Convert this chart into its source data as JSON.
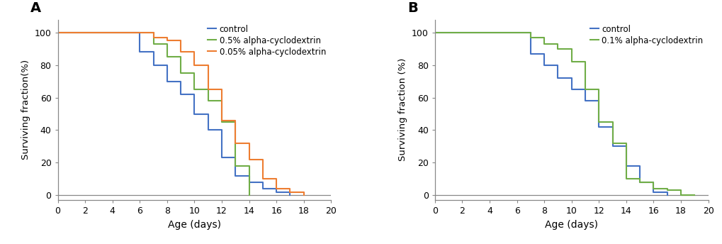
{
  "panel_A": {
    "title_label": "A",
    "xlabel": "Age (days)",
    "ylabel": "Surviving fraction(%)",
    "xlim": [
      0,
      20
    ],
    "ylim": [
      -3,
      108
    ],
    "xticks": [
      0,
      2,
      4,
      6,
      8,
      10,
      12,
      14,
      16,
      18,
      20
    ],
    "yticks": [
      0,
      20,
      40,
      60,
      80,
      100
    ],
    "curves": {
      "control": {
        "color": "#4472C4",
        "x": [
          0,
          5,
          6,
          7,
          8,
          9,
          10,
          11,
          12,
          13,
          14,
          15,
          16,
          17
        ],
        "y": [
          100,
          100,
          88,
          80,
          70,
          62,
          50,
          40,
          23,
          12,
          8,
          4,
          2,
          0
        ]
      },
      "green_05": {
        "color": "#70AD47",
        "x": [
          0,
          6,
          7,
          8,
          9,
          10,
          11,
          12,
          13,
          14
        ],
        "y": [
          100,
          100,
          93,
          85,
          75,
          65,
          58,
          45,
          18,
          0
        ]
      },
      "orange_005": {
        "color": "#ED7D31",
        "x": [
          0,
          6,
          7,
          8,
          9,
          10,
          11,
          12,
          13,
          14,
          15,
          16,
          17,
          18
        ],
        "y": [
          100,
          100,
          97,
          95,
          88,
          80,
          65,
          46,
          32,
          22,
          10,
          4,
          2,
          0
        ]
      }
    },
    "legend": [
      {
        "label": "control",
        "color": "#4472C4"
      },
      {
        "label": "0.5% alpha-cyclodextrin",
        "color": "#70AD47"
      },
      {
        "label": "0.05% alpha-cyclodextrin",
        "color": "#ED7D31"
      }
    ]
  },
  "panel_B": {
    "title_label": "B",
    "xlabel": "Age (days)",
    "ylabel": "Surviving fraction (%)",
    "xlim": [
      0,
      20
    ],
    "ylim": [
      -3,
      108
    ],
    "xticks": [
      0,
      2,
      4,
      6,
      8,
      10,
      12,
      14,
      16,
      18,
      20
    ],
    "yticks": [
      0,
      20,
      40,
      60,
      80,
      100
    ],
    "curves": {
      "control": {
        "color": "#4472C4",
        "x": [
          0,
          6,
          7,
          8,
          9,
          10,
          11,
          12,
          13,
          14,
          15,
          16,
          17
        ],
        "y": [
          100,
          100,
          87,
          80,
          72,
          65,
          58,
          42,
          30,
          18,
          8,
          2,
          0
        ]
      },
      "green_01": {
        "color": "#70AD47",
        "x": [
          0,
          6,
          7,
          8,
          9,
          10,
          11,
          12,
          13,
          14,
          15,
          16,
          17,
          18,
          19
        ],
        "y": [
          100,
          100,
          97,
          93,
          90,
          82,
          65,
          45,
          32,
          10,
          8,
          4,
          3,
          0,
          0
        ]
      }
    },
    "legend": [
      {
        "label": "control",
        "color": "#4472C4"
      },
      {
        "label": "0.1% alpha-cyclodextrin",
        "color": "#70AD47"
      }
    ]
  }
}
